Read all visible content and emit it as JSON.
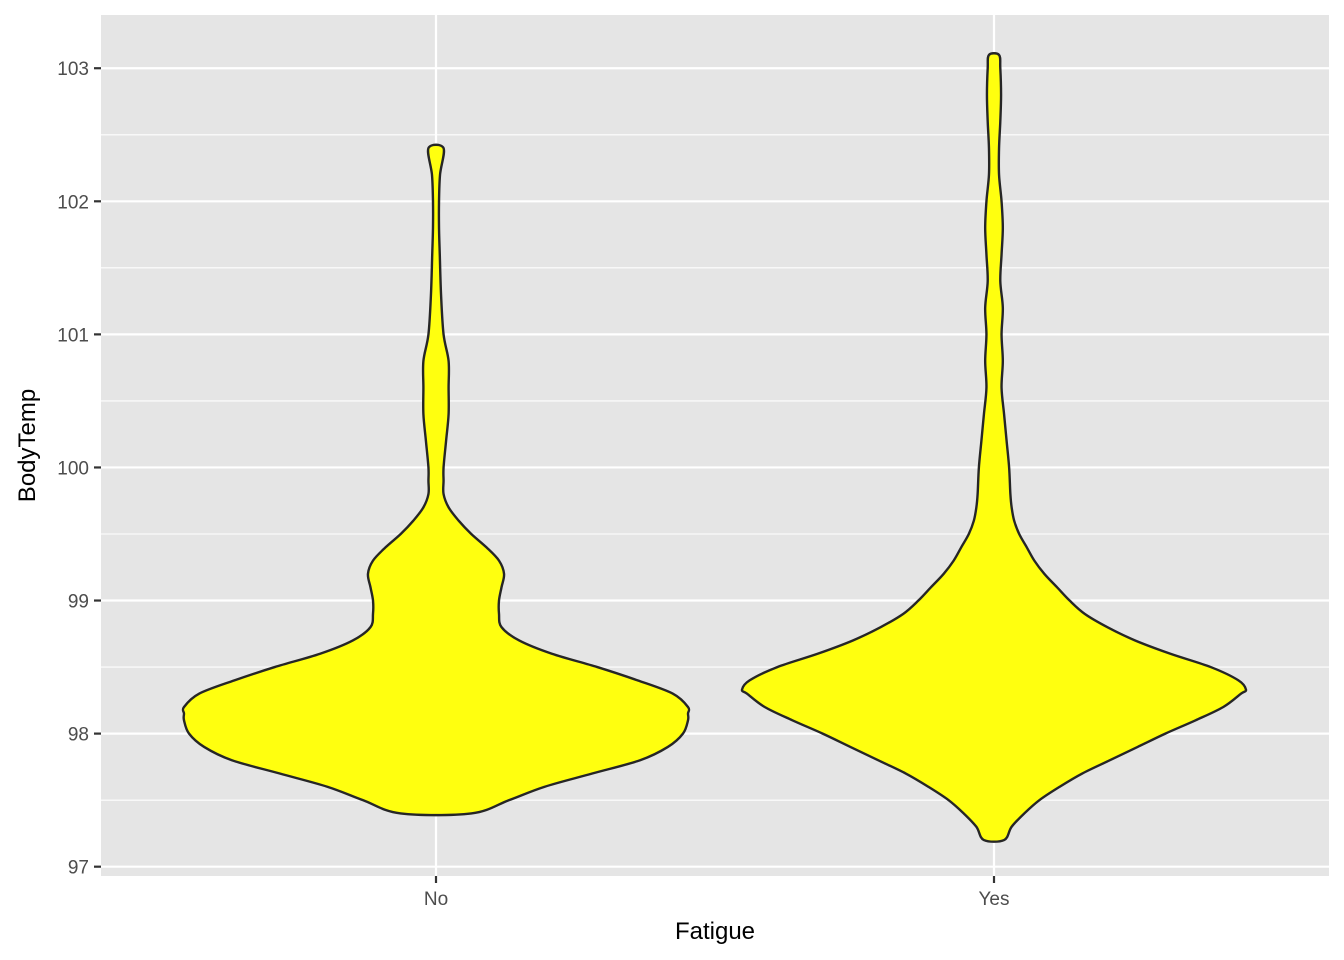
{
  "chart_data": {
    "type": "violin",
    "title": "",
    "xlabel": "Fatigue",
    "ylabel": "BodyTemp",
    "categories": [
      "No",
      "Yes"
    ],
    "ylim": [
      96.93,
      103.4
    ],
    "yticks": [
      97,
      98,
      99,
      100,
      101,
      102,
      103
    ],
    "y_minor_ticks": [
      97.5,
      98.5,
      99.5,
      100.5,
      101.5,
      102.5
    ],
    "grid": true,
    "legend": "none",
    "series": [
      {
        "category": "No",
        "min": 97.4,
        "max": 102.4,
        "density_profile": [
          [
            97.4,
            0.14
          ],
          [
            97.5,
            0.29
          ],
          [
            97.6,
            0.43
          ],
          [
            97.7,
            0.62
          ],
          [
            97.8,
            0.81
          ],
          [
            97.9,
            0.92
          ],
          [
            98.0,
            0.98
          ],
          [
            98.1,
            1.0
          ],
          [
            98.15,
            1.0
          ],
          [
            98.2,
            1.0
          ],
          [
            98.3,
            0.94
          ],
          [
            98.4,
            0.8
          ],
          [
            98.5,
            0.64
          ],
          [
            98.6,
            0.46
          ],
          [
            98.7,
            0.33
          ],
          [
            98.8,
            0.26
          ],
          [
            98.9,
            0.25
          ],
          [
            99.0,
            0.25
          ],
          [
            99.1,
            0.26
          ],
          [
            99.2,
            0.27
          ],
          [
            99.3,
            0.25
          ],
          [
            99.4,
            0.2
          ],
          [
            99.5,
            0.14
          ],
          [
            99.6,
            0.09
          ],
          [
            99.7,
            0.05
          ],
          [
            99.8,
            0.03
          ],
          [
            99.9,
            0.03
          ],
          [
            100.0,
            0.03
          ],
          [
            100.2,
            0.04
          ],
          [
            100.4,
            0.05
          ],
          [
            100.6,
            0.05
          ],
          [
            100.8,
            0.05
          ],
          [
            101.0,
            0.03
          ],
          [
            101.3,
            0.02
          ],
          [
            101.6,
            0.015
          ],
          [
            101.8,
            0.012
          ],
          [
            102.0,
            0.012
          ],
          [
            102.2,
            0.016
          ],
          [
            102.4,
            0.03
          ]
        ]
      },
      {
        "category": "Yes",
        "min": 97.2,
        "max": 103.1,
        "density_profile": [
          [
            97.2,
            0.04
          ],
          [
            97.3,
            0.07
          ],
          [
            97.4,
            0.12
          ],
          [
            97.5,
            0.18
          ],
          [
            97.6,
            0.26
          ],
          [
            97.7,
            0.35
          ],
          [
            97.8,
            0.46
          ],
          [
            97.9,
            0.57
          ],
          [
            98.0,
            0.68
          ],
          [
            98.1,
            0.8
          ],
          [
            98.2,
            0.91
          ],
          [
            98.3,
            0.98
          ],
          [
            98.33,
            1.0
          ],
          [
            98.4,
            0.97
          ],
          [
            98.5,
            0.86
          ],
          [
            98.6,
            0.7
          ],
          [
            98.7,
            0.56
          ],
          [
            98.8,
            0.45
          ],
          [
            98.9,
            0.36
          ],
          [
            99.0,
            0.3
          ],
          [
            99.1,
            0.25
          ],
          [
            99.2,
            0.2
          ],
          [
            99.3,
            0.16
          ],
          [
            99.4,
            0.13
          ],
          [
            99.5,
            0.1
          ],
          [
            99.6,
            0.08
          ],
          [
            99.7,
            0.07
          ],
          [
            99.8,
            0.065
          ],
          [
            100.0,
            0.06
          ],
          [
            100.2,
            0.05
          ],
          [
            100.4,
            0.04
          ],
          [
            100.6,
            0.03
          ],
          [
            100.8,
            0.035
          ],
          [
            101.0,
            0.03
          ],
          [
            101.2,
            0.035
          ],
          [
            101.4,
            0.025
          ],
          [
            101.6,
            0.03
          ],
          [
            101.8,
            0.035
          ],
          [
            102.0,
            0.03
          ],
          [
            102.2,
            0.02
          ],
          [
            102.4,
            0.02
          ],
          [
            102.6,
            0.025
          ],
          [
            102.8,
            0.028
          ],
          [
            103.0,
            0.025
          ],
          [
            103.1,
            0.02
          ]
        ]
      }
    ]
  },
  "colors": {
    "panel": "#e5e5e5",
    "grid": "#ffffff",
    "fill": "#ffff0f",
    "outline": "#262626",
    "tick_text": "#4d4d4d",
    "tick_mark": "#333333"
  }
}
